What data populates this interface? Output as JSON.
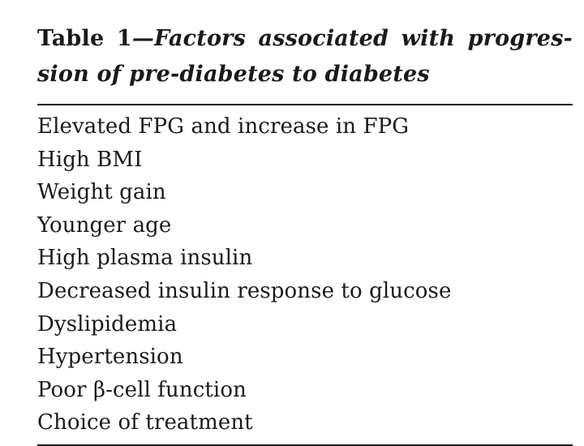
{
  "table": {
    "label": "Table 1",
    "title_line1": "Factors associated with progres-",
    "title_line2": "sion of pre-diabetes to diabetes",
    "rows": [
      "Elevated FPG and increase in FPG",
      "High BMI",
      "Weight gain",
      "Younger age",
      "High plasma insulin",
      "Decreased insulin response to glucose",
      "Dyslipidemia",
      "Hypertension",
      "Poor β-cell function",
      "Choice of treatment"
    ]
  }
}
